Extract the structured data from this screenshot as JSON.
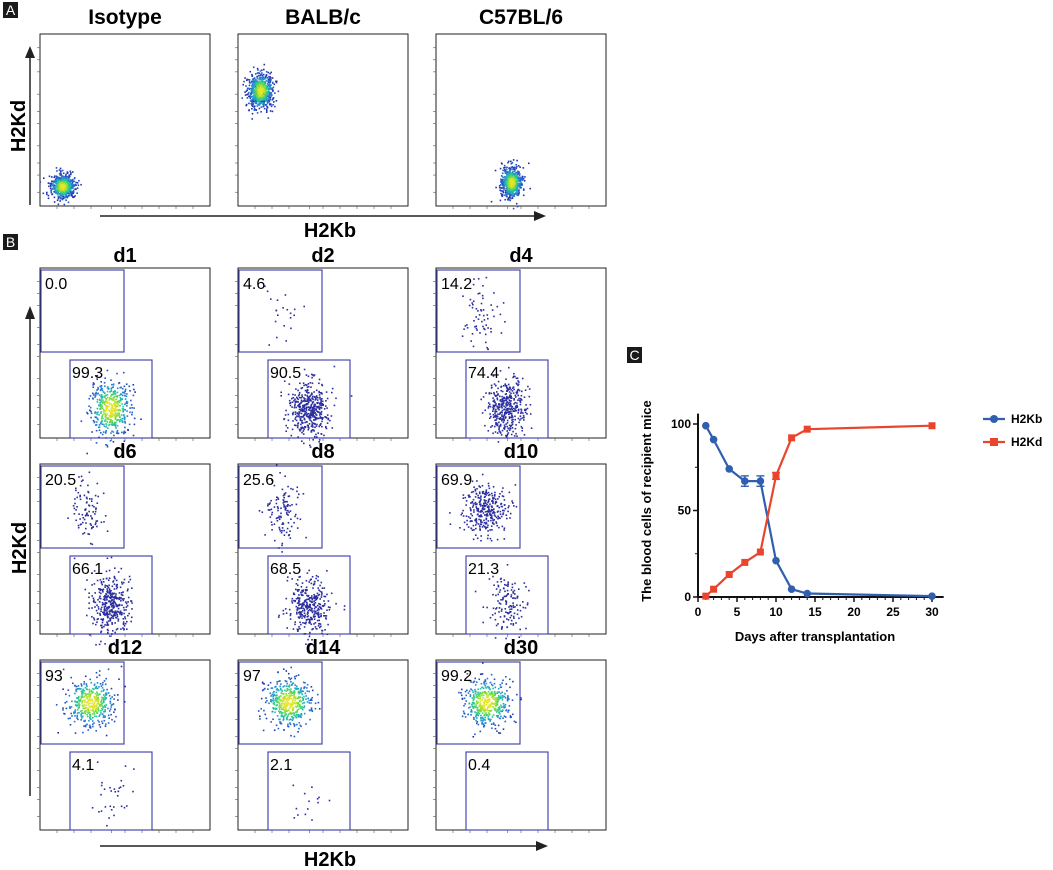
{
  "panel_a": {
    "tag": "A",
    "titles": [
      "Isotype",
      "BALB/c",
      "C57BL/6"
    ],
    "xlabel": "H2Kb",
    "ylabel": "H2Kd"
  },
  "panel_b": {
    "tag": "B",
    "xlabel": "H2Kb",
    "ylabel": "H2Kd",
    "plots": [
      {
        "title": "d1",
        "upper": "0.0",
        "lower": "99.3"
      },
      {
        "title": "d2",
        "upper": "4.6",
        "lower": "90.5"
      },
      {
        "title": "d4",
        "upper": "14.2",
        "lower": "74.4"
      },
      {
        "title": "d6",
        "upper": "20.5",
        "lower": "66.1"
      },
      {
        "title": "d8",
        "upper": "25.6",
        "lower": "68.5"
      },
      {
        "title": "d10",
        "upper": "69.9",
        "lower": "21.3"
      },
      {
        "title": "d12",
        "upper": "93",
        "lower": "4.1"
      },
      {
        "title": "d14",
        "upper": "97",
        "lower": "2.1"
      },
      {
        "title": "d30",
        "upper": "99.2",
        "lower": "0.4"
      }
    ]
  },
  "panel_c": {
    "tag": "C"
  },
  "chart_data": {
    "type": "line",
    "title": "",
    "xlabel": "Days after transplantation",
    "ylabel": "The blood cells of recipient mice",
    "xlim": [
      0,
      30
    ],
    "ylim": [
      0,
      100
    ],
    "xticks": [
      0,
      5,
      10,
      15,
      20,
      25,
      30
    ],
    "yticks": [
      0,
      50,
      100
    ],
    "legend_position": "top-right",
    "series": [
      {
        "name": "H2Kb",
        "color": "#2f5fae",
        "marker": "circle",
        "points": [
          [
            1,
            99
          ],
          [
            2,
            91
          ],
          [
            4,
            74
          ],
          [
            6,
            67
          ],
          [
            8,
            67
          ],
          [
            10,
            21
          ],
          [
            12,
            4.5
          ],
          [
            14,
            2
          ],
          [
            30,
            0.5
          ]
        ]
      },
      {
        "name": "H2Kd",
        "color": "#e8452c",
        "marker": "square",
        "points": [
          [
            1,
            0.5
          ],
          [
            2,
            4.5
          ],
          [
            4,
            13
          ],
          [
            6,
            20
          ],
          [
            8,
            26
          ],
          [
            10,
            70
          ],
          [
            12,
            92
          ],
          [
            14,
            97
          ],
          [
            30,
            99
          ]
        ]
      }
    ]
  }
}
